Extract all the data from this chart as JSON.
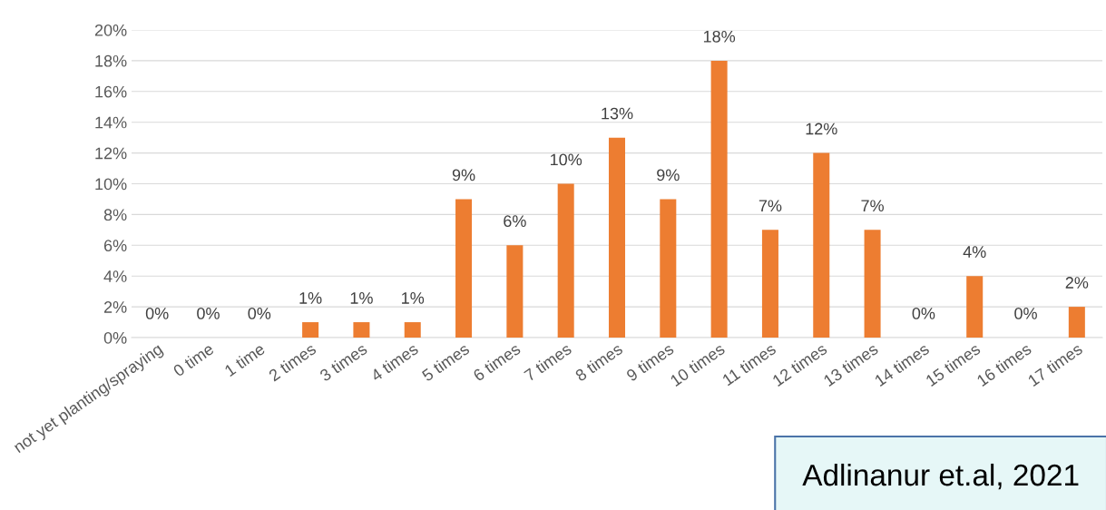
{
  "chart_data": {
    "type": "bar",
    "categories": [
      "not yet planting/spraying",
      "0 time",
      "1 time",
      "2 times",
      "3 times",
      "4 times",
      "5 times",
      "6 times",
      "7 times",
      "8 times",
      "9 times",
      "10 times",
      "11 times",
      "12 times",
      "13 times",
      "14 times",
      "15 times",
      "16 times",
      "17 times"
    ],
    "values": [
      0,
      0,
      0,
      1,
      1,
      1,
      9,
      6,
      10,
      13,
      9,
      18,
      7,
      12,
      7,
      0,
      4,
      0,
      2
    ],
    "value_labels": [
      "0%",
      "0%",
      "0%",
      "1%",
      "1%",
      "1%",
      "9%",
      "6%",
      "10%",
      "13%",
      "9%",
      "18%",
      "7%",
      "12%",
      "7%",
      "0%",
      "4%",
      "0%",
      "2%"
    ],
    "color": "#ed7d31",
    "ylim": [
      0,
      20
    ],
    "yticks": [
      {
        "value": 0,
        "label": "0%"
      },
      {
        "value": 2,
        "label": "2%"
      },
      {
        "value": 4,
        "label": "4%"
      },
      {
        "value": 6,
        "label": "6%"
      },
      {
        "value": 8,
        "label": "8%"
      },
      {
        "value": 10,
        "label": "10%"
      },
      {
        "value": 12,
        "label": "12%"
      },
      {
        "value": 14,
        "label": "14%"
      },
      {
        "value": 16,
        "label": "16%"
      },
      {
        "value": 18,
        "label": "18%"
      },
      {
        "value": 20,
        "label": "20%"
      }
    ],
    "grid": "y",
    "annotations": [
      "Adlinanur et.al, 2021"
    ]
  }
}
